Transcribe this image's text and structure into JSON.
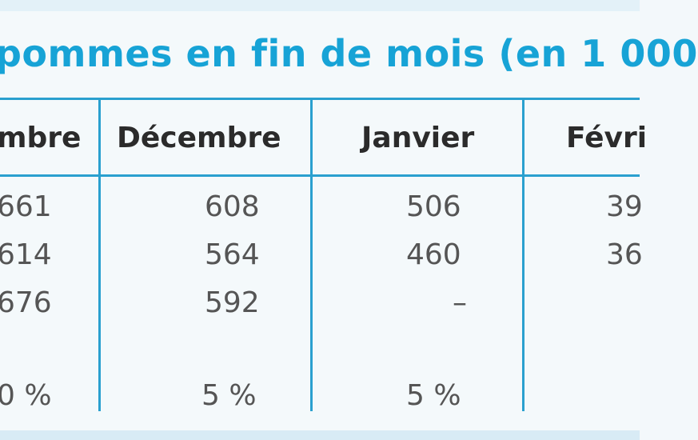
{
  "table": {
    "title": "pommes en fin de mois (en 1 000",
    "columns": [
      "mbre",
      "Décembre",
      "Janvier",
      "Févri"
    ],
    "rows": [
      [
        "661",
        "608",
        "506",
        "39"
      ],
      [
        "614",
        "564",
        "460",
        "36"
      ],
      [
        "676",
        "592",
        "–",
        ""
      ],
      [
        "0 %",
        "5 %",
        "5 %",
        ""
      ]
    ]
  },
  "colors": {
    "accent": "#17a3d6",
    "rule": "#2aa0cf",
    "background": "#f4f9fb"
  }
}
